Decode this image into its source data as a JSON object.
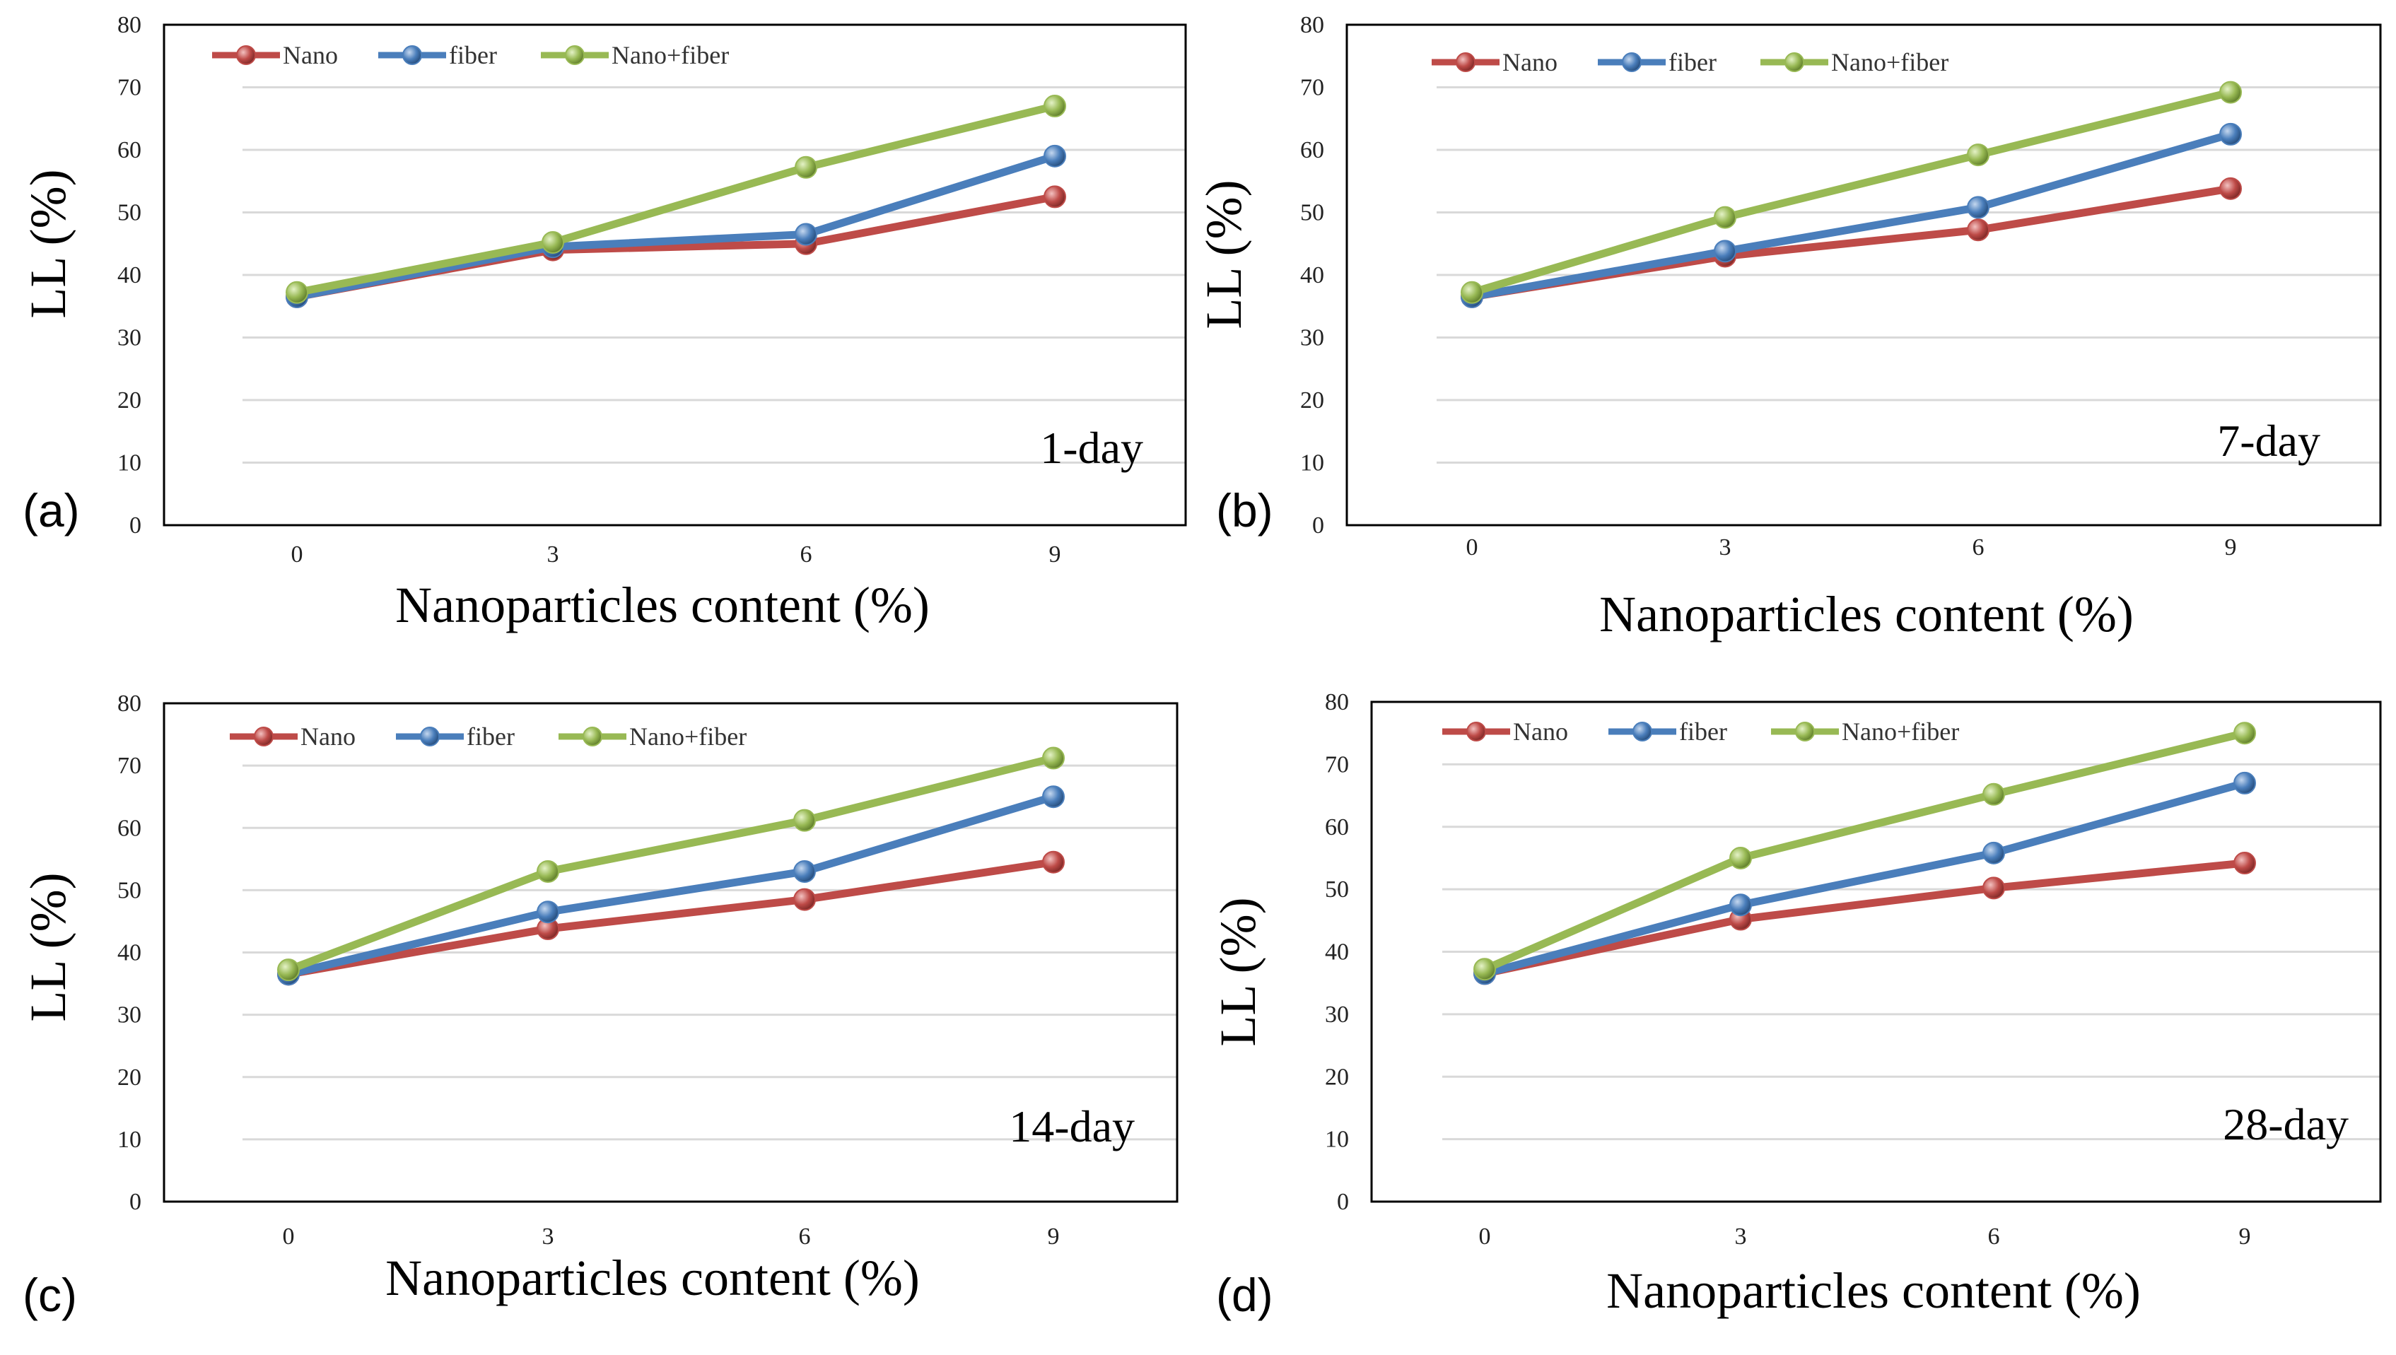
{
  "figure": {
    "y_axis_label": "LL (%)",
    "x_axis_label": "Nanoparticles content (%)"
  },
  "colors": {
    "Nano": "#be4b48",
    "fiber": "#4a7ebb",
    "Nano+fiber": "#98b954",
    "grid": "#d9d9d9",
    "frame": "#000000"
  },
  "chart_data": [
    {
      "type": "line",
      "panel_label": "(a)",
      "annotation": "1-day",
      "categories": [
        "0",
        "3",
        "6",
        "9"
      ],
      "series": [
        {
          "name": "Nano",
          "values": [
            36.5,
            44,
            45,
            52.5
          ]
        },
        {
          "name": "fiber",
          "values": [
            36.5,
            44.5,
            46.5,
            59
          ]
        },
        {
          "name": "Nano+fiber",
          "values": [
            37.2,
            45.2,
            57.2,
            67
          ]
        }
      ],
      "ylim": [
        0,
        80
      ],
      "yticks": [
        0,
        10,
        20,
        30,
        40,
        50,
        60,
        70,
        80
      ],
      "xlabel": "Nanoparticles content (%)",
      "ylabel": "LL (%)",
      "legend": "top-left",
      "grid": true
    },
    {
      "type": "line",
      "panel_label": "(b)",
      "annotation": "7-day",
      "categories": [
        "0",
        "3",
        "6",
        "9"
      ],
      "series": [
        {
          "name": "Nano",
          "values": [
            36.5,
            43,
            47.2,
            53.8
          ]
        },
        {
          "name": "fiber",
          "values": [
            36.5,
            43.8,
            50.8,
            62.5
          ]
        },
        {
          "name": "Nano+fiber",
          "values": [
            37.2,
            49.2,
            59.2,
            69.2
          ]
        }
      ],
      "ylim": [
        0,
        80
      ],
      "yticks": [
        0,
        10,
        20,
        30,
        40,
        50,
        60,
        70,
        80
      ],
      "xlabel": "Nanoparticles content (%)",
      "ylabel": "LL (%)",
      "legend": "top-left",
      "grid": true
    },
    {
      "type": "line",
      "panel_label": "(c)",
      "annotation": "14-day",
      "categories": [
        "0",
        "3",
        "6",
        "9"
      ],
      "series": [
        {
          "name": "Nano",
          "values": [
            36.5,
            43.8,
            48.5,
            54.5
          ]
        },
        {
          "name": "fiber",
          "values": [
            36.5,
            46.5,
            53,
            65
          ]
        },
        {
          "name": "Nano+fiber",
          "values": [
            37.2,
            53,
            61.2,
            71.2
          ]
        }
      ],
      "ylim": [
        0,
        80
      ],
      "yticks": [
        0,
        10,
        20,
        30,
        40,
        50,
        60,
        70,
        80
      ],
      "xlabel": "Nanoparticles content (%)",
      "ylabel": "LL (%)",
      "legend": "top-left",
      "grid": true
    },
    {
      "type": "line",
      "panel_label": "(d)",
      "annotation": "28-day",
      "categories": [
        "0",
        "3",
        "6",
        "9"
      ],
      "series": [
        {
          "name": "Nano",
          "values": [
            36.5,
            45.2,
            50.2,
            54.2
          ]
        },
        {
          "name": "fiber",
          "values": [
            36.5,
            47.5,
            55.8,
            67
          ]
        },
        {
          "name": "Nano+fiber",
          "values": [
            37.2,
            55,
            65.2,
            75
          ]
        }
      ],
      "ylim": [
        0,
        80
      ],
      "yticks": [
        0,
        10,
        20,
        30,
        40,
        50,
        60,
        70,
        80
      ],
      "xlabel": "Nanoparticles content (%)",
      "ylabel": "LL (%)",
      "legend": "top-left",
      "grid": true
    }
  ]
}
